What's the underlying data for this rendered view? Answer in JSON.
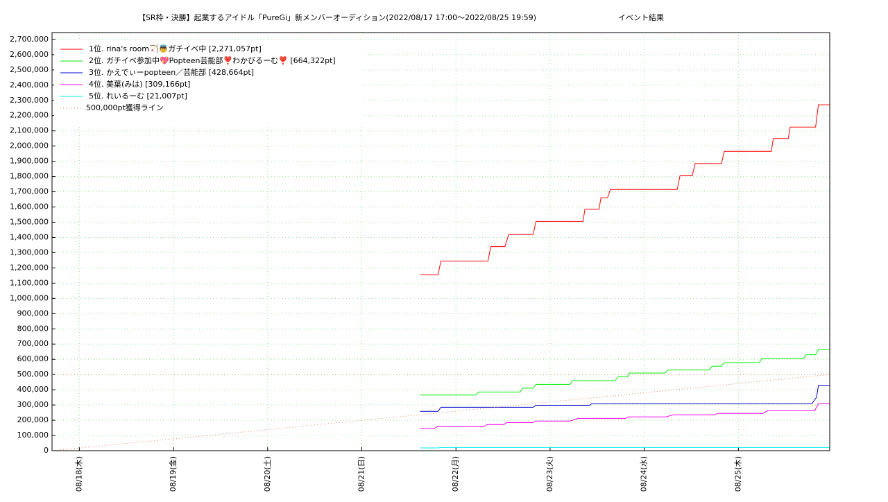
{
  "chart_data": {
    "type": "line",
    "title": "【SR枠・決勝】起業するアイドル「PureGi」新メンバーオーディション(2022/08/17 17:00～2022/08/25 19:59)",
    "subtitle": "イベント結果",
    "xlim": [
      17.71,
      25.97
    ],
    "xticks": [
      {
        "value": 18,
        "label": "08/18(木)"
      },
      {
        "value": 19,
        "label": "08/19(金)"
      },
      {
        "value": 20,
        "label": "08/20(土)"
      },
      {
        "value": 21,
        "label": "08/21(日)"
      },
      {
        "value": 22,
        "label": "08/22(月)"
      },
      {
        "value": 23,
        "label": "08/23(火)"
      },
      {
        "value": 24,
        "label": "08/24(水)"
      },
      {
        "value": 25,
        "label": "08/25(木)"
      }
    ],
    "ylim": [
      0,
      2745000
    ],
    "yticks": [
      0,
      {
        "value": 100000,
        "label": "100,000"
      },
      {
        "value": 200000,
        "label": "200,000"
      },
      {
        "value": 300000,
        "label": "300,000"
      },
      {
        "value": 400000,
        "label": "400,000"
      },
      {
        "value": 500000,
        "label": "500,000"
      },
      {
        "value": 600000,
        "label": "600,000"
      },
      {
        "value": 700000,
        "label": "700,000"
      },
      {
        "value": 800000,
        "label": "800,000"
      },
      {
        "value": 900000,
        "label": "900,000"
      },
      {
        "value": 1000000,
        "label": "1,000,000"
      },
      {
        "value": 1100000,
        "label": "1,100,000"
      },
      {
        "value": 1200000,
        "label": "1,200,000"
      },
      {
        "value": 1300000,
        "label": "1,300,000"
      },
      {
        "value": 1400000,
        "label": "1,400,000"
      },
      {
        "value": 1500000,
        "label": "1,500,000"
      },
      {
        "value": 1600000,
        "label": "1,600,000"
      },
      {
        "value": 1700000,
        "label": "1,700,000"
      },
      {
        "value": 1800000,
        "label": "1,800,000"
      },
      {
        "value": 1900000,
        "label": "1,900,000"
      },
      {
        "value": 2000000,
        "label": "2,000,000"
      },
      {
        "value": 2100000,
        "label": "2,100,000"
      },
      {
        "value": 2200000,
        "label": "2,200,000"
      },
      {
        "value": 2300000,
        "label": "2,300,000"
      },
      {
        "value": 2400000,
        "label": "2,400,000"
      },
      {
        "value": 2500000,
        "label": "2,500,000"
      },
      {
        "value": 2600000,
        "label": "2,600,000"
      },
      {
        "value": 2700000,
        "label": "2,700,000"
      }
    ],
    "grid": true,
    "legend": "upper left",
    "hline": 500000,
    "series": [
      {
        "name": "1位. rina's room🏹👼ガチイベ中 [2,271,057pt]",
        "color": "#ff0000",
        "x": [
          21.62,
          21.81,
          21.84,
          22.34,
          22.37,
          22.52,
          22.56,
          22.82,
          22.85,
          23.35,
          23.37,
          23.52,
          23.54,
          23.61,
          23.64,
          24.35,
          24.38,
          24.51,
          24.54,
          24.82,
          24.85,
          25.35,
          25.37,
          25.53,
          25.55,
          25.82,
          25.85,
          25.97
        ],
        "values": [
          1155000,
          1155000,
          1245000,
          1245000,
          1340000,
          1340000,
          1420000,
          1420000,
          1505000,
          1505000,
          1585000,
          1585000,
          1660000,
          1660000,
          1715000,
          1715000,
          1805000,
          1805000,
          1885000,
          1885000,
          1965000,
          1965000,
          2050000,
          2050000,
          2125000,
          2125000,
          2271057,
          2271057
        ]
      },
      {
        "name": "2位. ガチイベ参加中💖Popteen芸能部❣️わかびるーむ❣️ [664,322pt]",
        "color": "#00ee00",
        "x": [
          21.62,
          22.21,
          22.24,
          22.68,
          22.71,
          22.82,
          22.85,
          23.21,
          23.24,
          23.69,
          23.72,
          23.82,
          23.84,
          24.22,
          24.25,
          24.69,
          24.72,
          24.82,
          24.85,
          25.22,
          25.25,
          25.69,
          25.72,
          25.82,
          25.85,
          25.97
        ],
        "values": [
          365000,
          365000,
          385000,
          385000,
          410000,
          410000,
          435000,
          435000,
          460000,
          460000,
          485000,
          485000,
          510000,
          510000,
          530000,
          530000,
          555000,
          555000,
          578000,
          578000,
          605000,
          605000,
          630000,
          630000,
          664322,
          664322
        ]
      },
      {
        "name": "3位. かえでぃーpopteen／芸能部 [428,664pt]",
        "color": "#0000cc",
        "x": [
          21.62,
          21.81,
          21.84,
          22.82,
          22.85,
          23.42,
          23.44,
          25.78,
          25.83,
          25.85,
          25.97
        ],
        "values": [
          258000,
          258000,
          285000,
          285000,
          298000,
          298000,
          308000,
          308000,
          350000,
          428664,
          428664
        ]
      },
      {
        "name": "4位. 美葉(みは) [309,166pt]",
        "color": "#ee00ee",
        "x": [
          21.62,
          21.77,
          21.8,
          22.3,
          22.33,
          22.51,
          22.54,
          22.82,
          22.85,
          23.21,
          23.3,
          23.8,
          23.83,
          24.23,
          24.31,
          24.75,
          24.78,
          25.26,
          25.31,
          25.81,
          25.85,
          25.97
        ],
        "values": [
          145000,
          145000,
          158000,
          158000,
          172000,
          172000,
          185000,
          185000,
          195000,
          195000,
          212000,
          212000,
          222000,
          222000,
          236000,
          236000,
          245000,
          245000,
          262000,
          262000,
          309166,
          309166
        ]
      },
      {
        "name": "5位. れいるーむ [21,007pt]",
        "color": "#00eeee",
        "x": [
          21.62,
          21.81,
          21.84,
          25.97
        ],
        "values": [
          18000,
          18000,
          21007,
          21007
        ]
      },
      {
        "name": "500,000pt獲得ライン",
        "color": "#e08060",
        "style": "dotted",
        "x": [
          17.71,
          25.97
        ],
        "values": [
          0,
          500000
        ]
      }
    ]
  }
}
